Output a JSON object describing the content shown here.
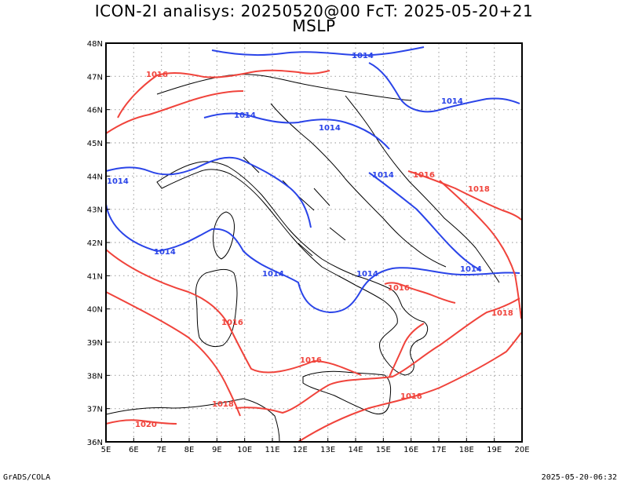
{
  "title_line1": "ICON-2I analisys: 20250520@00 FcT: 2025-05-20+21",
  "title_line2": "MSLP",
  "footer_left": "GrADS/COLA",
  "footer_right": "2025-05-20-06:32",
  "axes": {
    "lon_labels": [
      "5E",
      "6E",
      "7E",
      "8E",
      "9E",
      "10E",
      "11E",
      "12E",
      "13E",
      "14E",
      "15E",
      "16E",
      "17E",
      "18E",
      "19E",
      "20E"
    ],
    "lat_labels": [
      "36N",
      "37N",
      "38N",
      "39N",
      "40N",
      "41N",
      "42N",
      "43N",
      "44N",
      "45N",
      "46N",
      "47N",
      "48N"
    ],
    "lon_range": [
      5,
      20
    ],
    "lat_range": [
      36,
      48
    ]
  },
  "contour_labels": {
    "low": "1014",
    "high": "1016",
    "higher": "1018",
    "highest": "1020"
  },
  "colors": {
    "isobar_low": "#2a44e8",
    "isobar_high": "#f0433b",
    "coast": "#000000",
    "grid": "#a8a8a8"
  }
}
